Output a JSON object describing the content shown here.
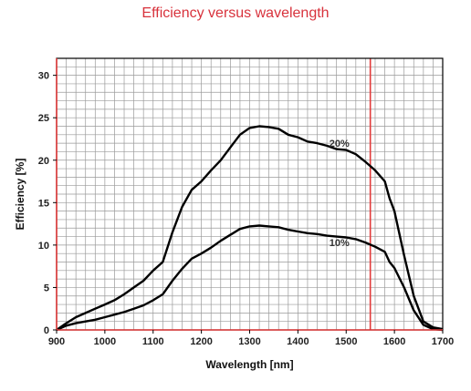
{
  "chart_data": {
    "type": "line",
    "title": "Efficiency versus wavelength",
    "xlabel": "Wavelength [nm]",
    "ylabel": "Efficiency [%]",
    "xlim": [
      900,
      1700
    ],
    "ylim": [
      0,
      32
    ],
    "xticks": [
      900,
      1000,
      1100,
      1200,
      1300,
      1400,
      1500,
      1600,
      1700
    ],
    "yticks": [
      0,
      5,
      10,
      15,
      20,
      25,
      30
    ],
    "grid": true,
    "reference_line": {
      "x": 1550,
      "color": "#e23b3b"
    },
    "series": [
      {
        "name": "20%",
        "label_at": [
          1465,
          21.6
        ],
        "x": [
          900,
          920,
          940,
          960,
          980,
          1000,
          1020,
          1040,
          1060,
          1080,
          1100,
          1120,
          1140,
          1160,
          1180,
          1200,
          1220,
          1240,
          1260,
          1280,
          1300,
          1320,
          1340,
          1360,
          1380,
          1400,
          1420,
          1440,
          1460,
          1480,
          1500,
          1520,
          1540,
          1560,
          1580,
          1590,
          1600,
          1620,
          1640,
          1660,
          1680,
          1700
        ],
        "values": [
          0.0,
          0.8,
          1.5,
          2.0,
          2.5,
          3.0,
          3.5,
          4.2,
          5.0,
          5.8,
          7.0,
          8.0,
          11.5,
          14.5,
          16.5,
          17.5,
          18.8,
          20.0,
          21.5,
          23.0,
          23.8,
          24.0,
          23.9,
          23.7,
          23.0,
          22.7,
          22.2,
          22.0,
          21.7,
          21.3,
          21.2,
          20.7,
          19.8,
          18.8,
          17.5,
          15.5,
          14.0,
          8.8,
          4.0,
          1.0,
          0.3,
          0.1
        ]
      },
      {
        "name": "10%",
        "label_at": [
          1465,
          9.9
        ],
        "x": [
          900,
          920,
          940,
          960,
          980,
          1000,
          1020,
          1040,
          1060,
          1080,
          1100,
          1120,
          1140,
          1160,
          1180,
          1200,
          1220,
          1240,
          1260,
          1280,
          1300,
          1320,
          1340,
          1360,
          1380,
          1400,
          1420,
          1440,
          1460,
          1480,
          1500,
          1520,
          1540,
          1560,
          1580,
          1590,
          1600,
          1620,
          1640,
          1660,
          1680,
          1700
        ],
        "values": [
          0.0,
          0.5,
          0.8,
          1.0,
          1.2,
          1.5,
          1.8,
          2.1,
          2.5,
          2.9,
          3.5,
          4.2,
          5.8,
          7.2,
          8.4,
          9.0,
          9.7,
          10.5,
          11.2,
          11.9,
          12.2,
          12.3,
          12.2,
          12.1,
          11.8,
          11.6,
          11.4,
          11.3,
          11.1,
          11.0,
          10.9,
          10.7,
          10.3,
          9.8,
          9.2,
          8.0,
          7.3,
          5.0,
          2.3,
          0.6,
          0.1,
          0.0
        ]
      }
    ]
  }
}
